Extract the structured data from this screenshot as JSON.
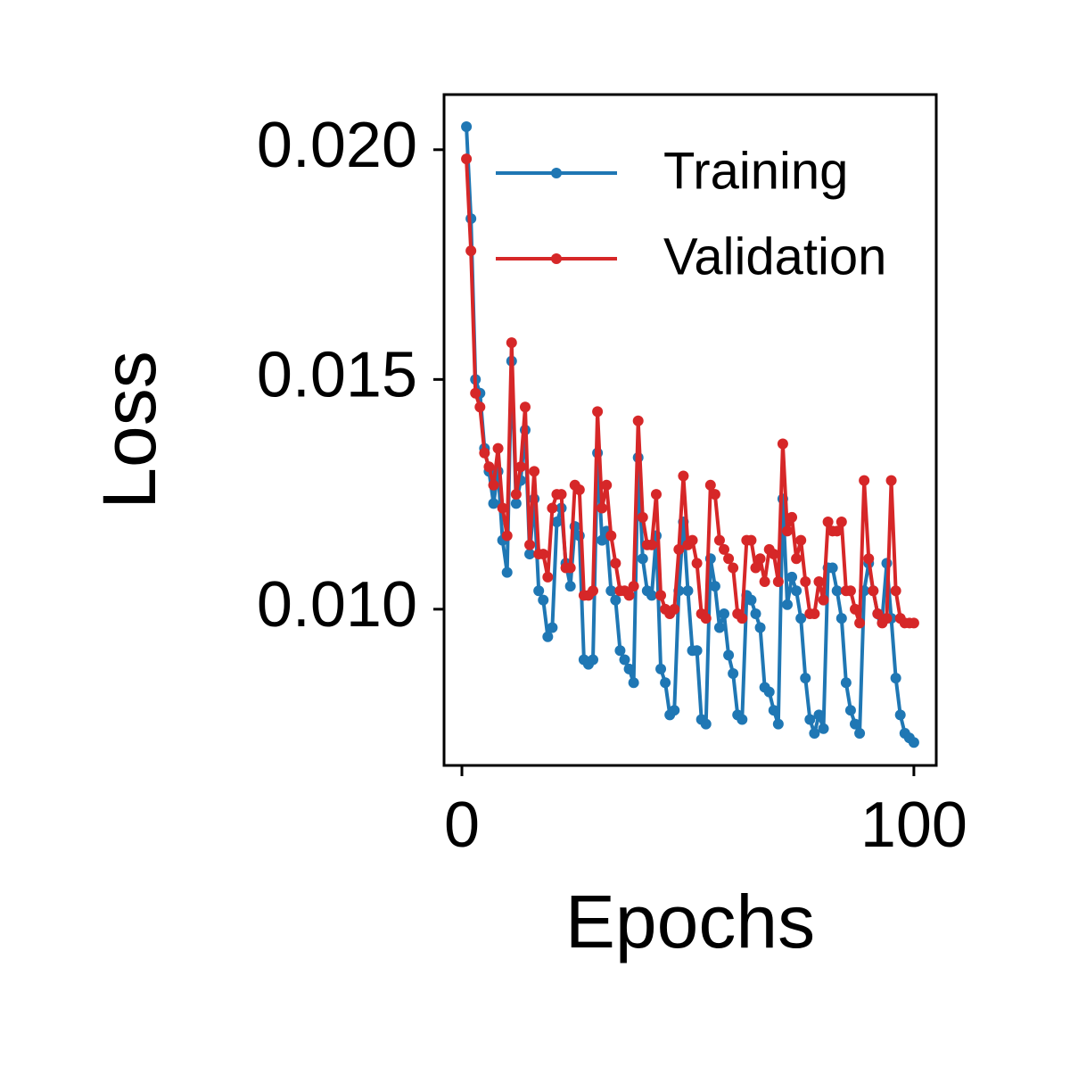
{
  "chart_data": {
    "type": "line",
    "x": [
      1,
      2,
      3,
      4,
      5,
      6,
      7,
      8,
      9,
      10,
      11,
      12,
      13,
      14,
      15,
      16,
      17,
      18,
      19,
      20,
      21,
      22,
      23,
      24,
      25,
      26,
      27,
      28,
      29,
      30,
      31,
      32,
      33,
      34,
      35,
      36,
      37,
      38,
      39,
      40,
      41,
      42,
      43,
      44,
      45,
      46,
      47,
      48,
      49,
      50,
      51,
      52,
      53,
      54,
      55,
      56,
      57,
      58,
      59,
      60,
      61,
      62,
      63,
      64,
      65,
      66,
      67,
      68,
      69,
      70,
      71,
      72,
      73,
      74,
      75,
      76,
      77,
      78,
      79,
      80,
      81,
      82,
      83,
      84,
      85,
      86,
      87,
      88,
      89,
      90,
      91,
      92,
      93,
      94,
      95,
      96,
      97,
      98,
      99,
      100
    ],
    "series": [
      {
        "name": "Training",
        "color": "#1f77b4",
        "values": [
          0.0205,
          0.0185,
          0.015,
          0.0147,
          0.0135,
          0.013,
          0.0123,
          0.013,
          0.0115,
          0.0108,
          0.0154,
          0.0123,
          0.0128,
          0.0139,
          0.0112,
          0.0124,
          0.0104,
          0.0102,
          0.0094,
          0.0096,
          0.0119,
          0.0122,
          0.011,
          0.0105,
          0.0118,
          0.0116,
          0.0089,
          0.0088,
          0.0089,
          0.0134,
          0.0115,
          0.0117,
          0.0104,
          0.0102,
          0.0091,
          0.0089,
          0.0087,
          0.0084,
          0.0133,
          0.0111,
          0.0104,
          0.0103,
          0.0116,
          0.0087,
          0.0084,
          0.0077,
          0.0078,
          0.0104,
          0.0119,
          0.0104,
          0.0091,
          0.0091,
          0.0076,
          0.0075,
          0.0111,
          0.0105,
          0.0096,
          0.0099,
          0.009,
          0.0086,
          0.0077,
          0.0076,
          0.0103,
          0.0102,
          0.0099,
          0.0096,
          0.0083,
          0.0082,
          0.0078,
          0.0075,
          0.0124,
          0.0101,
          0.0107,
          0.0104,
          0.0098,
          0.0085,
          0.0076,
          0.0073,
          0.0077,
          0.0074,
          0.0109,
          0.0109,
          0.0104,
          0.0098,
          0.0084,
          0.0078,
          0.0075,
          0.0073,
          0.0104,
          0.011,
          0.0104,
          0.0099,
          0.0098,
          0.011,
          0.0098,
          0.0085,
          0.0077,
          0.0073,
          0.0072,
          0.0071
        ]
      },
      {
        "name": "Validation",
        "color": "#d62728",
        "values": [
          0.0198,
          0.0178,
          0.0147,
          0.0144,
          0.0134,
          0.0131,
          0.0127,
          0.0135,
          0.0122,
          0.0116,
          0.0158,
          0.0125,
          0.0131,
          0.0144,
          0.0114,
          0.013,
          0.0112,
          0.0112,
          0.0107,
          0.0122,
          0.0125,
          0.0125,
          0.0109,
          0.0109,
          0.0127,
          0.0126,
          0.0103,
          0.0103,
          0.0104,
          0.0143,
          0.0122,
          0.0127,
          0.0116,
          0.011,
          0.0104,
          0.0104,
          0.0103,
          0.0105,
          0.0141,
          0.012,
          0.0114,
          0.0114,
          0.0125,
          0.0103,
          0.01,
          0.0099,
          0.01,
          0.0113,
          0.0129,
          0.0114,
          0.0115,
          0.011,
          0.0099,
          0.0098,
          0.0127,
          0.0125,
          0.0115,
          0.0113,
          0.0111,
          0.0109,
          0.0099,
          0.0098,
          0.0115,
          0.0115,
          0.0109,
          0.0111,
          0.0106,
          0.0113,
          0.0112,
          0.0106,
          0.0136,
          0.0117,
          0.012,
          0.0111,
          0.0115,
          0.0106,
          0.0099,
          0.0099,
          0.0106,
          0.0102,
          0.0119,
          0.0117,
          0.0117,
          0.0119,
          0.0104,
          0.0104,
          0.01,
          0.0097,
          0.0128,
          0.0111,
          0.0104,
          0.0099,
          0.0097,
          0.0098,
          0.0128,
          0.0104,
          0.0098,
          0.0097,
          0.0097,
          0.0097
        ]
      }
    ],
    "xlabel": "Epochs",
    "ylabel": "Loss",
    "xlim": [
      -3.95,
      104.95
    ],
    "xticks": [
      0,
      100
    ],
    "ylim": [
      0.0066,
      0.0212
    ],
    "yticks": [
      {
        "value": 0.01,
        "label": "0.010"
      },
      {
        "value": 0.015,
        "label": "0.015"
      },
      {
        "value": 0.02,
        "label": "0.020"
      }
    ],
    "legend": "upper right",
    "grid": false
  }
}
